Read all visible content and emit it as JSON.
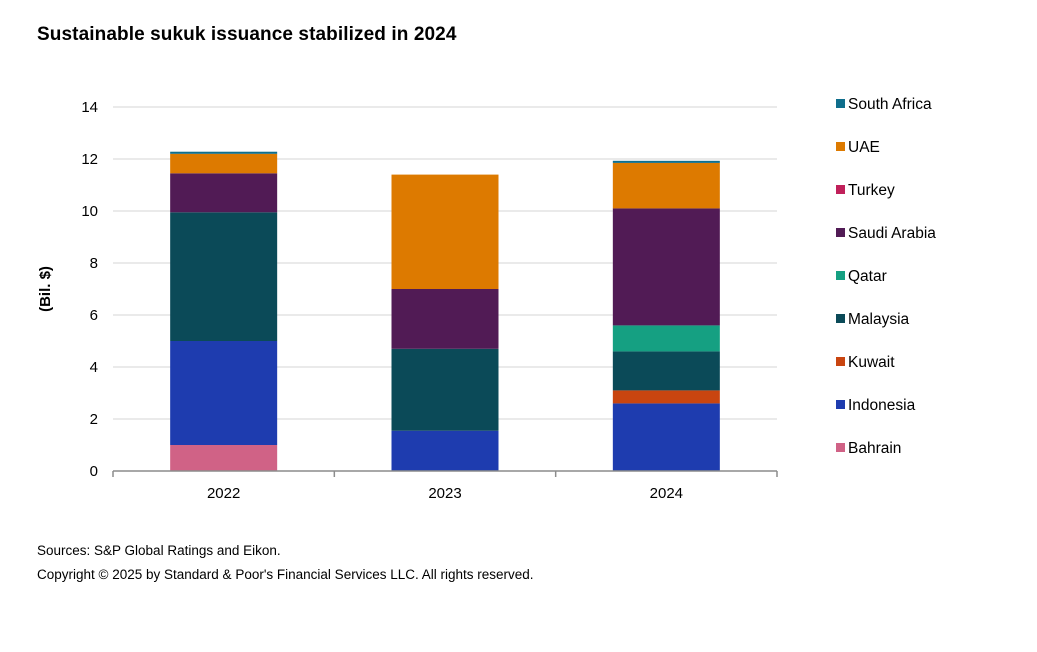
{
  "title": "Sustainable sukuk issuance stabilized in 2024",
  "footer": {
    "sources": "Sources: S&P Global Ratings and Eikon.",
    "copyright": "Copyright © 2025 by Standard & Poor's Financial Services LLC. All rights reserved."
  },
  "chart_data": {
    "type": "bar",
    "stacked": true,
    "categories": [
      "2022",
      "2023",
      "2024"
    ],
    "ylabel": "(Bil. $)",
    "ylim": [
      0,
      14
    ],
    "yticks": [
      0,
      2,
      4,
      6,
      8,
      10,
      12,
      14
    ],
    "grid": true,
    "legend_position": "right",
    "series": [
      {
        "name": "Bahrain",
        "color": "#d06286",
        "values": [
          1.0,
          0,
          0
        ]
      },
      {
        "name": "Indonesia",
        "color": "#1e3caf",
        "values": [
          4.0,
          1.55,
          2.6
        ]
      },
      {
        "name": "Kuwait",
        "color": "#c94510",
        "values": [
          0,
          0,
          0.5
        ]
      },
      {
        "name": "Malaysia",
        "color": "#0b4a58",
        "values": [
          4.95,
          3.15,
          1.5
        ]
      },
      {
        "name": "Qatar",
        "color": "#15a082",
        "values": [
          0,
          0,
          1.0
        ]
      },
      {
        "name": "Saudi Arabia",
        "color": "#511b55",
        "values": [
          1.5,
          2.3,
          4.5
        ]
      },
      {
        "name": "Turkey",
        "color": "#c0205a",
        "values": [
          0,
          0,
          0
        ]
      },
      {
        "name": "UAE",
        "color": "#dd7a00",
        "values": [
          0.75,
          4.4,
          1.75
        ]
      },
      {
        "name": "South Africa",
        "color": "#0f6e8c",
        "values": [
          0.08,
          0,
          0.08
        ]
      }
    ]
  }
}
